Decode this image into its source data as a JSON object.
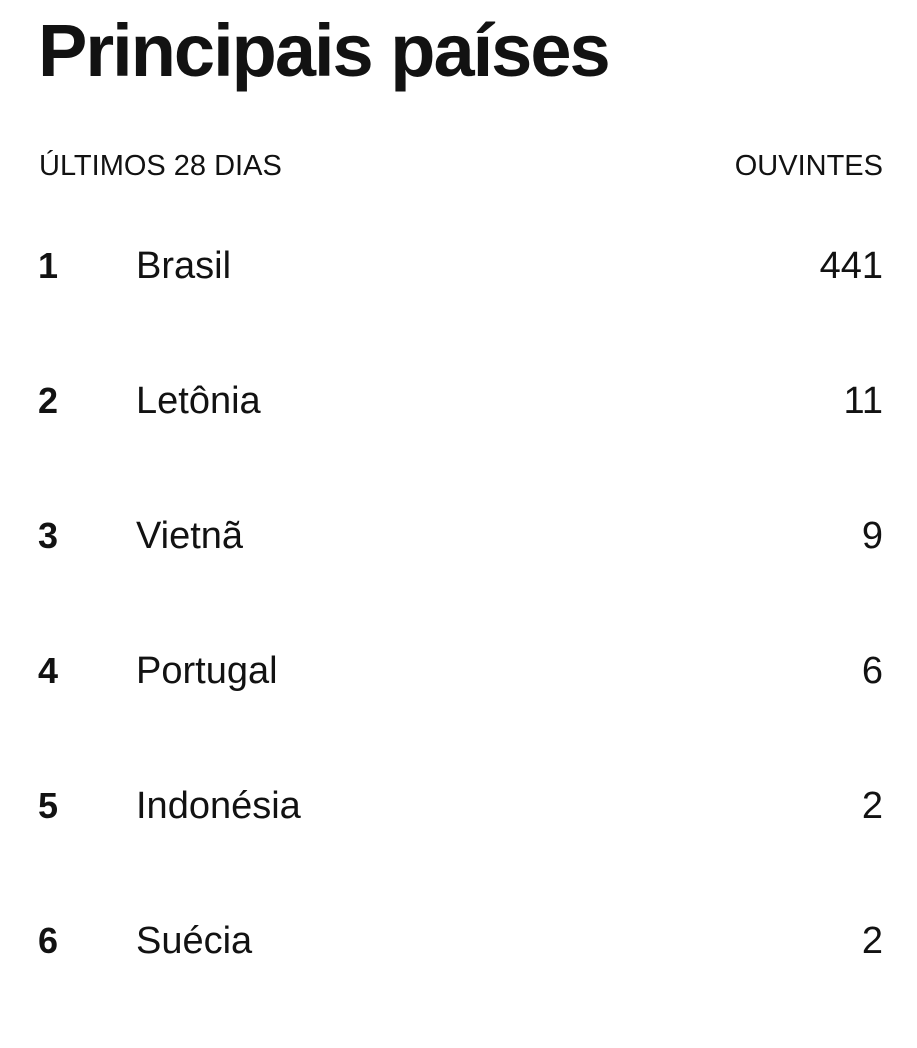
{
  "title": "Principais países",
  "header": {
    "period_label": "ÚLTIMOS 28 DIAS",
    "metric_label": "OUVINTES"
  },
  "countries": [
    {
      "rank": "1",
      "name": "Brasil",
      "listeners": "441"
    },
    {
      "rank": "2",
      "name": "Letônia",
      "listeners": "11"
    },
    {
      "rank": "3",
      "name": "Vietnã",
      "listeners": "9"
    },
    {
      "rank": "4",
      "name": "Portugal",
      "listeners": "6"
    },
    {
      "rank": "5",
      "name": "Indonésia",
      "listeners": "2"
    },
    {
      "rank": "6",
      "name": "Suécia",
      "listeners": "2"
    }
  ]
}
